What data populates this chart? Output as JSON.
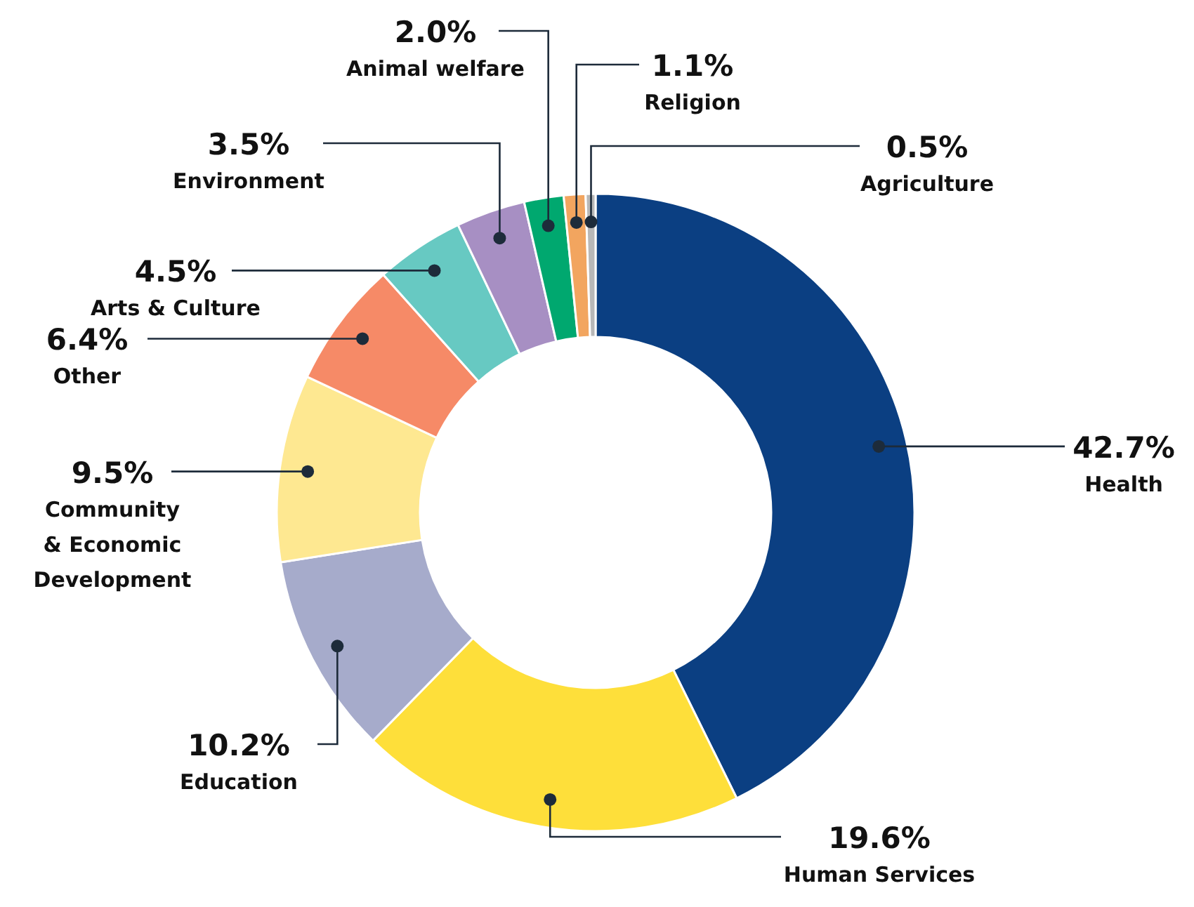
{
  "chart_data": {
    "type": "donut",
    "categories": [
      "Health",
      "Human Services",
      "Education",
      "Community & Economic Development",
      "Other",
      "Arts & Culture",
      "Environment",
      "Animal welfare",
      "Religion",
      "Agriculture"
    ],
    "values": [
      42.7,
      19.6,
      10.2,
      9.5,
      6.4,
      4.5,
      3.5,
      2.0,
      1.1,
      0.5
    ],
    "colors": [
      "#0b3f82",
      "#fedf3a",
      "#a6abcb",
      "#fee891",
      "#f68a67",
      "#67c9c2",
      "#a78fc3",
      "#00a86f",
      "#f2a55f",
      "#b8b8b8"
    ],
    "value_labels": [
      "42.7%",
      "19.6%",
      "10.2%",
      "9.5%",
      "6.4%",
      "4.5%",
      "3.5%",
      "2.0%",
      "1.1%",
      "0.5%"
    ]
  }
}
